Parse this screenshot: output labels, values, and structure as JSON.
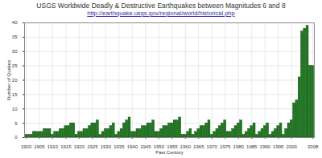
{
  "chart_data": {
    "type": "bar",
    "title": "USGS Worldwide Deadly & Destructive Earthquakes between Magnitudes 6 and 8",
    "subtitle": "http://earthquake.usgs.gov/regional/world/historical.php",
    "x_label": "Past Century",
    "y_label": "Number of Quakes",
    "categories": [
      1900,
      1901,
      1902,
      1903,
      1904,
      1905,
      1906,
      1907,
      1908,
      1909,
      1910,
      1911,
      1912,
      1913,
      1914,
      1915,
      1916,
      1917,
      1918,
      1919,
      1920,
      1921,
      1922,
      1923,
      1924,
      1925,
      1926,
      1927,
      1928,
      1929,
      1930,
      1931,
      1932,
      1933,
      1934,
      1935,
      1936,
      1937,
      1938,
      1939,
      1940,
      1941,
      1942,
      1943,
      1944,
      1945,
      1946,
      1947,
      1948,
      1949,
      1950,
      1951,
      1952,
      1953,
      1954,
      1955,
      1956,
      1957,
      1958,
      1959,
      1960,
      1961,
      1962,
      1963,
      1964,
      1965,
      1966,
      1967,
      1968,
      1969,
      1970,
      1971,
      1972,
      1973,
      1974,
      1975,
      1976,
      1977,
      1978,
      1979,
      1980,
      1981,
      1982,
      1983,
      1984,
      1985,
      1986,
      1987,
      1988,
      1989,
      1990,
      1991,
      1992,
      1993,
      1994,
      1995,
      1996,
      1997,
      1998,
      1999,
      2000,
      2001,
      2002,
      2003,
      2004,
      2005,
      2006,
      2007,
      2008
    ],
    "values": [
      1,
      1,
      1,
      2,
      2,
      2,
      2,
      3,
      3,
      3,
      1,
      2,
      2,
      3,
      3,
      4,
      4,
      5,
      5,
      1,
      2,
      2,
      3,
      3,
      4,
      5,
      5,
      6,
      1,
      2,
      3,
      3,
      4,
      5,
      1,
      2,
      3,
      5,
      6,
      7,
      2,
      2,
      3,
      3,
      4,
      4,
      5,
      5,
      6,
      2,
      2,
      3,
      4,
      4,
      5,
      5,
      6,
      6,
      7,
      1,
      1,
      2,
      3,
      1,
      2,
      3,
      4,
      4,
      5,
      6,
      1,
      2,
      3,
      4,
      5,
      6,
      2,
      2,
      3,
      4,
      5,
      6,
      1,
      2,
      3,
      4,
      5,
      1,
      2,
      3,
      4,
      5,
      1,
      2,
      3,
      4,
      5,
      1,
      3,
      5,
      6,
      12,
      13,
      21,
      37,
      38,
      39,
      25,
      25
    ],
    "color": "#1e7a1e",
    "ylim": [
      0,
      40
    ],
    "yticks": [
      0,
      5,
      10,
      15,
      20,
      25,
      30,
      35,
      40
    ],
    "xticks": [
      1900,
      1905,
      1910,
      1915,
      1920,
      1925,
      1930,
      1935,
      1940,
      1945,
      1950,
      1955,
      1960,
      1965,
      1970,
      1975,
      1980,
      1985,
      1990,
      1995,
      2000,
      2008
    ],
    "grid": true
  }
}
